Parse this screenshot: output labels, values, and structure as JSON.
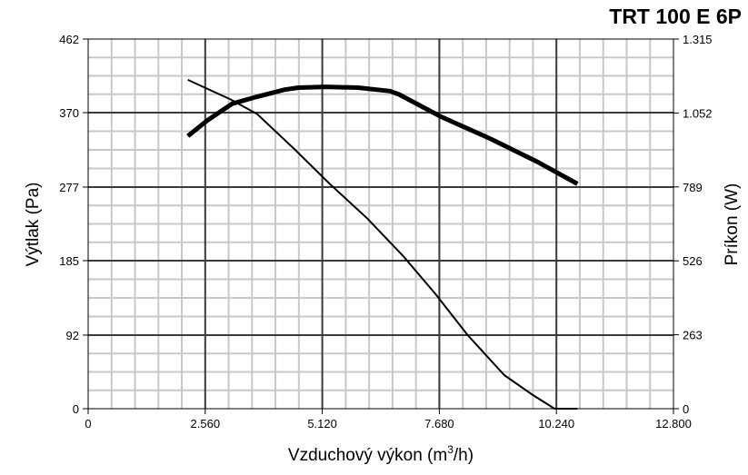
{
  "chart_data": {
    "type": "line",
    "title": "TRT 100 E 6P",
    "xlabel": "Vzduchový výkon (m",
    "xlabel_sup": "3",
    "xlabel_tail": "/h)",
    "ylabel_left": "Výtlak (Pa)",
    "ylabel_right": "Príkon (W)",
    "xlim": [
      0,
      12800
    ],
    "ylim_left": [
      0,
      462
    ],
    "ylim_right": [
      0,
      1315
    ],
    "x_ticks": [
      0,
      2560,
      5120,
      7680,
      10240,
      12800
    ],
    "x_tick_labels": [
      "0",
      "2.560",
      "5.120",
      "7.680",
      "10.240",
      "12.800"
    ],
    "y_left_ticks": [
      0,
      92,
      185,
      277,
      370,
      462
    ],
    "y_left_tick_labels": [
      "0",
      "92",
      "185",
      "277",
      "370",
      "462"
    ],
    "y_right_ticks": [
      0,
      263,
      526,
      789,
      1052,
      1315
    ],
    "y_right_tick_labels": [
      "0",
      "263",
      "526",
      "789",
      "1.052",
      "1.315"
    ],
    "grid": true,
    "series": [
      {
        "axis": "left",
        "stroke": "thin",
        "color": "#000000",
        "x": [
          2180,
          2600,
          3100,
          3700,
          4500,
          5300,
          6100,
          6900,
          7600,
          8300,
          9100,
          9700,
          10200,
          10700
        ],
        "y": [
          411,
          400,
          387,
          368,
          325,
          280,
          238,
          190,
          143,
          92,
          42,
          18,
          0,
          0
        ]
      },
      {
        "axis": "right",
        "stroke": "thick",
        "color": "#000000",
        "x": [
          2180,
          2600,
          3150,
          3700,
          4300,
          4600,
          5200,
          5900,
          6600,
          6800,
          7700,
          8800,
          9800,
          10700
        ],
        "y": [
          970,
          1025,
          1085,
          1110,
          1135,
          1142,
          1145,
          1142,
          1130,
          1118,
          1040,
          960,
          880,
          800
        ]
      }
    ]
  }
}
